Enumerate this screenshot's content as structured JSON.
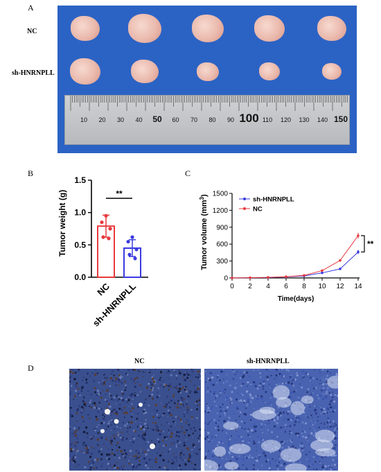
{
  "panels": {
    "a": "A",
    "b": "B",
    "c": "C",
    "d": "D"
  },
  "photo": {
    "row_labels": [
      "NC",
      "sh-HNRNPLL"
    ],
    "ruler_labels": [
      "10",
      "20",
      "30",
      "40",
      "50",
      "60",
      "70",
      "80",
      "90",
      "100",
      "110",
      "120",
      "130",
      "140",
      "150"
    ],
    "tumors": [
      {
        "group": "NC",
        "size": 1.0
      },
      {
        "group": "NC",
        "size": 1.15
      },
      {
        "group": "NC",
        "size": 1.1
      },
      {
        "group": "NC",
        "size": 1.05
      },
      {
        "group": "NC",
        "size": 1.0
      },
      {
        "group": "sh-HNRNPLL",
        "size": 1.05
      },
      {
        "group": "sh-HNRNPLL",
        "size": 0.95
      },
      {
        "group": "sh-HNRNPLL",
        "size": 0.75
      },
      {
        "group": "sh-HNRNPLL",
        "size": 0.7
      },
      {
        "group": "sh-HNRNPLL",
        "size": 0.65
      }
    ],
    "background_color": "#2b63c4"
  },
  "chart_data": [
    {
      "type": "bar",
      "ylabel": "Tumor weight (g)",
      "categories": [
        "NC",
        "sh-HNRNPLL"
      ],
      "values": [
        0.79,
        0.45
      ],
      "errors": [
        0.17,
        0.13
      ],
      "points": [
        [
          0.95,
          0.85,
          0.75,
          0.62,
          0.6
        ],
        [
          0.62,
          0.55,
          0.43,
          0.35,
          0.29
        ]
      ],
      "ylim": [
        0,
        1.5
      ],
      "yticks": [
        "0.0",
        "0.5",
        "1.0",
        "1.5"
      ],
      "significance": "**",
      "colors": [
        "#e8383d",
        "#3a3ae0"
      ]
    },
    {
      "type": "line",
      "xlabel": "Time(days)",
      "ylabel": "Tumor volume (mm",
      "ylabel_superscript": "3",
      "ylabel_suffix": ")",
      "x": [
        0,
        2,
        4,
        6,
        8,
        10,
        12,
        14
      ],
      "xticks": [
        "0",
        "2",
        "4",
        "6",
        "8",
        "10",
        "12",
        "14"
      ],
      "yticks": [
        "0",
        "300",
        "600",
        "900",
        "1200",
        "1500"
      ],
      "ylim": [
        0,
        1500
      ],
      "series": [
        {
          "name": "sh-HNRNPLL",
          "values": [
            0,
            3,
            8,
            18,
            35,
            90,
            160,
            460
          ],
          "error": 40,
          "color": "#3a3ae0"
        },
        {
          "name": "NC",
          "values": [
            0,
            4,
            10,
            22,
            45,
            130,
            310,
            750
          ],
          "error": 50,
          "color": "#e8383d"
        }
      ],
      "legend": "top-left",
      "significance": "**"
    }
  ],
  "micrographs": {
    "titles": [
      "NC",
      "sh-HNRNPLL"
    ]
  }
}
